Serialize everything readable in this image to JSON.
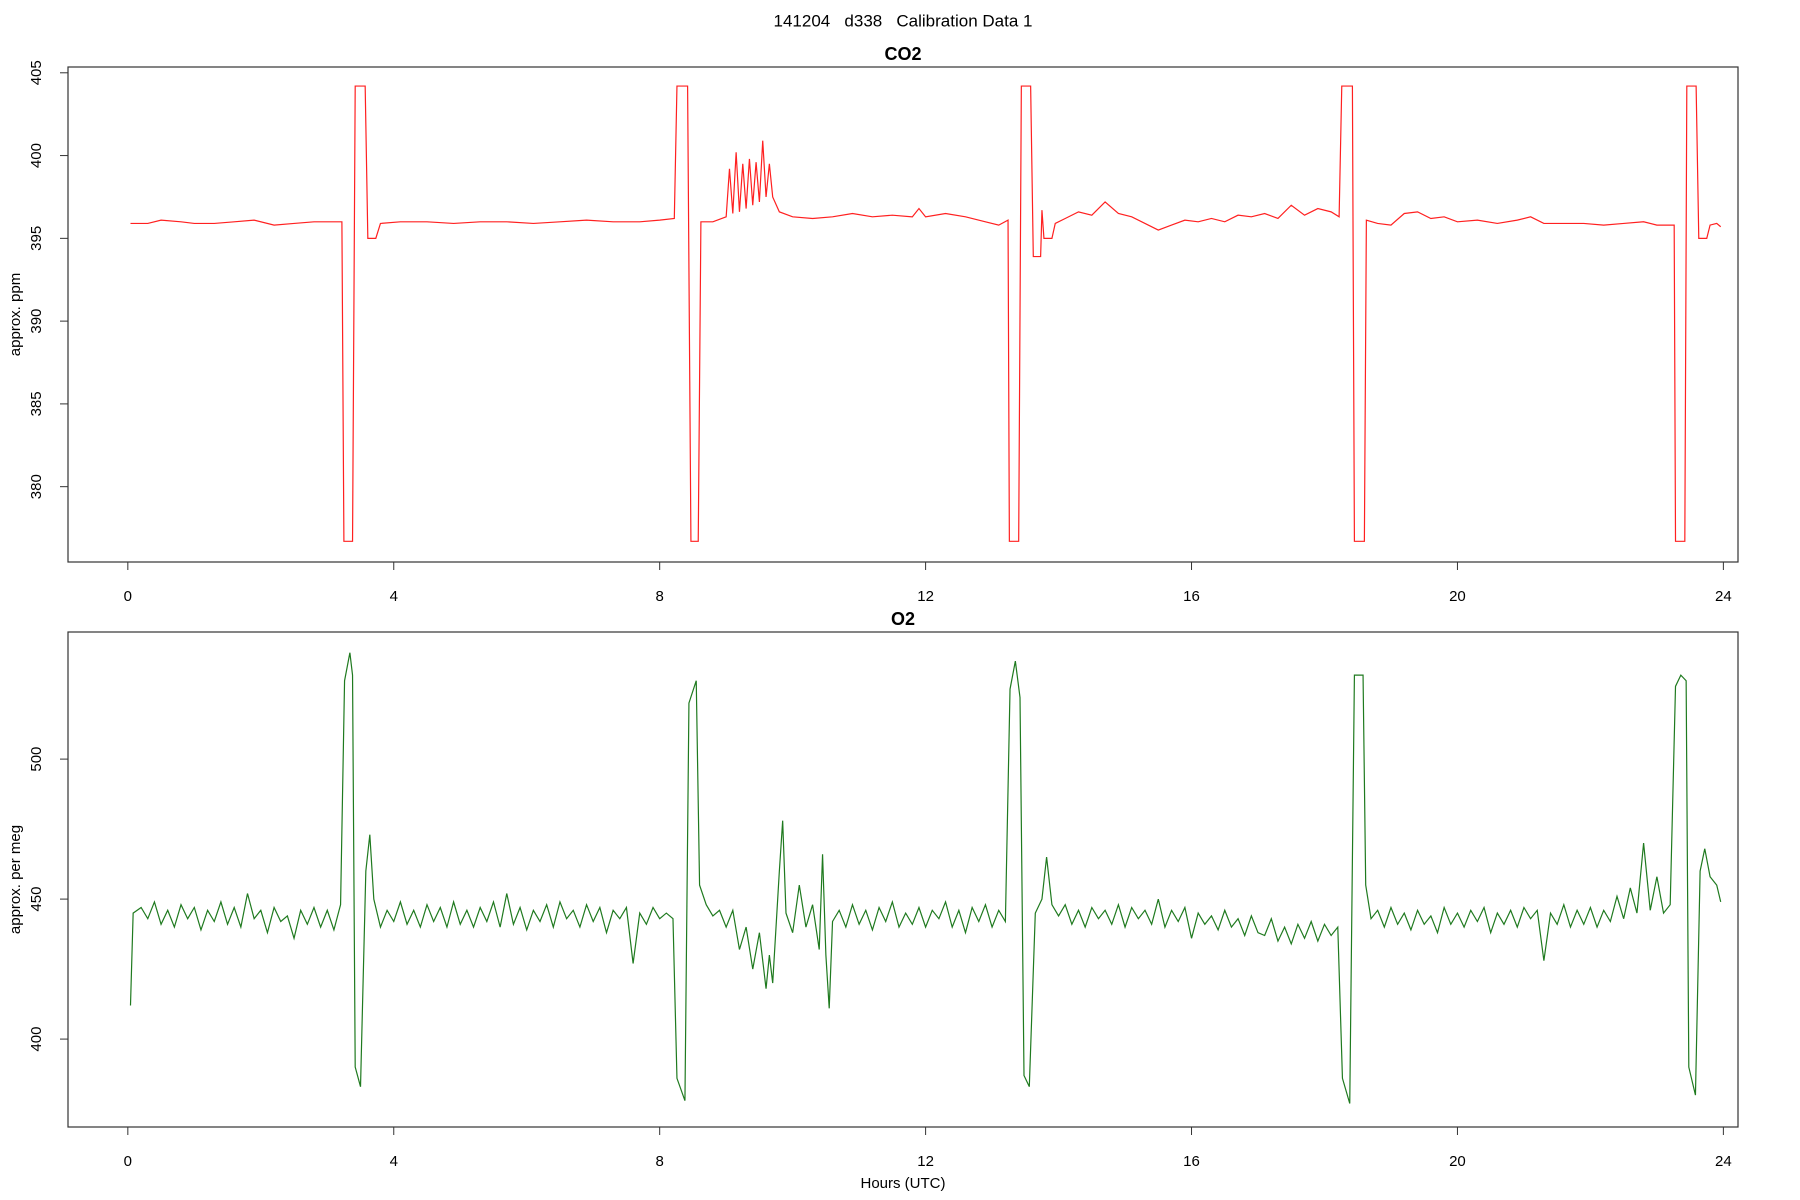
{
  "title": "141204   d338   Calibration Data 1",
  "chart_data": [
    {
      "type": "line",
      "title": "CO2",
      "ylabel": "approx. ppm",
      "xlim": [
        -0.9,
        24.22
      ],
      "xticks": [
        0,
        4,
        8,
        12,
        16,
        20,
        24
      ],
      "ylim": [
        375.45,
        405.35
      ],
      "yticks": [
        380,
        385,
        390,
        395,
        400,
        405
      ],
      "x": [
        0.04,
        0.3,
        0.5,
        0.8,
        1.0,
        1.3,
        1.6,
        1.9,
        2.2,
        2.5,
        2.8,
        3.0,
        3.22,
        3.25,
        3.38,
        3.42,
        3.57,
        3.61,
        3.73,
        3.8,
        4.1,
        4.5,
        4.9,
        5.3,
        5.7,
        6.1,
        6.5,
        6.9,
        7.3,
        7.7,
        8.0,
        8.22,
        8.26,
        8.42,
        8.47,
        8.58,
        8.62,
        8.8,
        9.0,
        9.05,
        9.1,
        9.15,
        9.2,
        9.25,
        9.3,
        9.35,
        9.4,
        9.45,
        9.5,
        9.55,
        9.6,
        9.65,
        9.7,
        9.8,
        10.0,
        10.3,
        10.6,
        10.9,
        11.2,
        11.5,
        11.8,
        11.9,
        12.0,
        12.3,
        12.6,
        12.9,
        13.1,
        13.24,
        13.26,
        13.4,
        13.44,
        13.58,
        13.62,
        13.73,
        13.75,
        13.78,
        13.9,
        13.95,
        14.1,
        14.3,
        14.5,
        14.7,
        14.9,
        15.1,
        15.3,
        15.5,
        15.7,
        15.9,
        16.1,
        16.3,
        16.5,
        16.7,
        16.9,
        17.1,
        17.3,
        17.5,
        17.7,
        17.9,
        18.1,
        18.22,
        18.26,
        18.42,
        18.45,
        18.6,
        18.63,
        18.8,
        19.0,
        19.2,
        19.4,
        19.6,
        19.8,
        20.0,
        20.3,
        20.6,
        20.9,
        21.1,
        21.3,
        21.6,
        21.9,
        22.2,
        22.5,
        22.8,
        23.0,
        23.26,
        23.28,
        23.42,
        23.45,
        23.59,
        23.63,
        23.75,
        23.8,
        23.9,
        23.96
      ],
      "series": [
        {
          "color": "#ff2020",
          "values": [
            395.9,
            395.9,
            396.1,
            396.0,
            395.9,
            395.9,
            396.0,
            396.1,
            395.8,
            395.9,
            396.0,
            396.0,
            396.0,
            376.7,
            376.7,
            404.2,
            404.2,
            395.0,
            395.0,
            395.9,
            396.0,
            396.0,
            395.9,
            396.0,
            396.0,
            395.9,
            396.0,
            396.1,
            396.0,
            396.0,
            396.1,
            396.2,
            404.2,
            404.2,
            376.7,
            376.7,
            396.0,
            396.0,
            396.3,
            399.2,
            396.5,
            400.2,
            396.6,
            399.5,
            396.8,
            399.8,
            397.0,
            399.6,
            397.2,
            400.9,
            397.5,
            399.5,
            397.5,
            396.6,
            396.3,
            396.2,
            396.3,
            396.5,
            396.3,
            396.4,
            396.3,
            396.8,
            396.3,
            396.5,
            396.3,
            396.0,
            395.8,
            396.1,
            376.7,
            376.7,
            404.2,
            404.2,
            393.9,
            393.9,
            396.7,
            395.0,
            395.0,
            395.9,
            396.2,
            396.6,
            396.4,
            397.2,
            396.5,
            396.3,
            395.9,
            395.5,
            395.8,
            396.1,
            396.0,
            396.2,
            396.0,
            396.4,
            396.3,
            396.5,
            396.2,
            397.0,
            396.4,
            396.8,
            396.6,
            396.3,
            404.2,
            404.2,
            376.7,
            376.7,
            396.1,
            395.9,
            395.8,
            396.5,
            396.6,
            396.2,
            396.3,
            396.0,
            396.1,
            395.9,
            396.1,
            396.3,
            395.9,
            395.9,
            395.9,
            395.8,
            395.9,
            396.0,
            395.8,
            395.8,
            376.7,
            376.7,
            404.2,
            404.2,
            395.0,
            395.0,
            395.8,
            395.9,
            395.7
          ]
        }
      ]
    },
    {
      "type": "line",
      "title": "O2",
      "ylabel": "approx. per meg",
      "xlabel": "Hours (UTC)",
      "xlim": [
        -0.9,
        24.22
      ],
      "xticks": [
        0,
        4,
        8,
        12,
        16,
        20,
        24
      ],
      "ylim": [
        368.6,
        545.4
      ],
      "yticks": [
        400,
        450,
        500
      ],
      "x": [
        0.04,
        0.08,
        0.2,
        0.3,
        0.4,
        0.5,
        0.6,
        0.7,
        0.8,
        0.9,
        1.0,
        1.1,
        1.2,
        1.3,
        1.4,
        1.5,
        1.6,
        1.7,
        1.8,
        1.9,
        2.0,
        2.1,
        2.2,
        2.3,
        2.4,
        2.5,
        2.6,
        2.7,
        2.8,
        2.9,
        3.0,
        3.1,
        3.2,
        3.26,
        3.34,
        3.38,
        3.42,
        3.5,
        3.58,
        3.64,
        3.7,
        3.8,
        3.9,
        4.0,
        4.1,
        4.2,
        4.3,
        4.4,
        4.5,
        4.6,
        4.7,
        4.8,
        4.9,
        5.0,
        5.1,
        5.2,
        5.3,
        5.4,
        5.5,
        5.6,
        5.7,
        5.8,
        5.9,
        6.0,
        6.1,
        6.2,
        6.3,
        6.4,
        6.5,
        6.6,
        6.7,
        6.8,
        6.9,
        7.0,
        7.1,
        7.2,
        7.3,
        7.4,
        7.5,
        7.6,
        7.7,
        7.8,
        7.9,
        8.0,
        8.1,
        8.2,
        8.26,
        8.38,
        8.44,
        8.55,
        8.6,
        8.7,
        8.8,
        8.9,
        9.0,
        9.1,
        9.2,
        9.3,
        9.4,
        9.5,
        9.6,
        9.65,
        9.7,
        9.8,
        9.85,
        9.9,
        10.0,
        10.1,
        10.2,
        10.3,
        10.4,
        10.45,
        10.5,
        10.55,
        10.6,
        10.7,
        10.8,
        10.9,
        11.0,
        11.1,
        11.2,
        11.3,
        11.4,
        11.5,
        11.6,
        11.7,
        11.8,
        11.9,
        12.0,
        12.1,
        12.2,
        12.3,
        12.4,
        12.5,
        12.6,
        12.7,
        12.8,
        12.9,
        13.0,
        13.1,
        13.2,
        13.27,
        13.35,
        13.42,
        13.48,
        13.56,
        13.65,
        13.75,
        13.82,
        13.9,
        14.0,
        14.1,
        14.2,
        14.3,
        14.4,
        14.5,
        14.6,
        14.7,
        14.8,
        14.9,
        15.0,
        15.1,
        15.2,
        15.3,
        15.4,
        15.5,
        15.6,
        15.7,
        15.8,
        15.9,
        16.0,
        16.1,
        16.2,
        16.3,
        16.4,
        16.5,
        16.6,
        16.7,
        16.8,
        16.9,
        17.0,
        17.1,
        17.2,
        17.3,
        17.4,
        17.5,
        17.6,
        17.7,
        17.8,
        17.9,
        18.0,
        18.1,
        18.2,
        18.27,
        18.38,
        18.45,
        18.58,
        18.62,
        18.7,
        18.8,
        18.9,
        19.0,
        19.1,
        19.2,
        19.3,
        19.4,
        19.5,
        19.6,
        19.7,
        19.8,
        19.9,
        20.0,
        20.1,
        20.2,
        20.3,
        20.4,
        20.5,
        20.6,
        20.7,
        20.8,
        20.9,
        21.0,
        21.1,
        21.2,
        21.3,
        21.4,
        21.5,
        21.6,
        21.7,
        21.8,
        21.9,
        22.0,
        22.1,
        22.2,
        22.3,
        22.4,
        22.5,
        22.6,
        22.7,
        22.8,
        22.9,
        23.0,
        23.1,
        23.2,
        23.28,
        23.36,
        23.44,
        23.48,
        23.58,
        23.65,
        23.72,
        23.8,
        23.9,
        23.96
      ],
      "series": [
        {
          "color": "#1f7a1f",
          "values": [
            412,
            445,
            447,
            443,
            449,
            441,
            446,
            440,
            448,
            443,
            447,
            439,
            446,
            442,
            449,
            441,
            447,
            440,
            452,
            443,
            446,
            438,
            447,
            442,
            444,
            436,
            446,
            441,
            447,
            440,
            446,
            439,
            448,
            528,
            538,
            530,
            390,
            383,
            460,
            473,
            450,
            440,
            446,
            442,
            449,
            441,
            446,
            440,
            448,
            442,
            447,
            440,
            449,
            441,
            446,
            440,
            447,
            442,
            449,
            440,
            452,
            441,
            447,
            439,
            446,
            442,
            448,
            440,
            449,
            443,
            446,
            440,
            448,
            442,
            447,
            438,
            446,
            443,
            447,
            427,
            445,
            441,
            447,
            443,
            445,
            443,
            386,
            378,
            520,
            528,
            455,
            448,
            444,
            446,
            440,
            446,
            432,
            440,
            425,
            438,
            418,
            430,
            420,
            460,
            478,
            445,
            438,
            455,
            440,
            448,
            432,
            466,
            430,
            411,
            442,
            446,
            440,
            448,
            441,
            446,
            439,
            447,
            442,
            449,
            440,
            445,
            441,
            447,
            440,
            446,
            443,
            449,
            440,
            446,
            438,
            447,
            442,
            448,
            440,
            446,
            442,
            525,
            535,
            522,
            387,
            383,
            445,
            450,
            465,
            448,
            444,
            448,
            441,
            446,
            440,
            447,
            443,
            446,
            441,
            448,
            440,
            447,
            443,
            446,
            441,
            450,
            440,
            446,
            442,
            447,
            436,
            445,
            441,
            444,
            439,
            446,
            440,
            443,
            437,
            444,
            438,
            437,
            443,
            435,
            440,
            434,
            441,
            436,
            442,
            435,
            441,
            437,
            440,
            386,
            377,
            530,
            530,
            455,
            443,
            446,
            440,
            447,
            441,
            445,
            439,
            446,
            441,
            444,
            438,
            447,
            441,
            445,
            440,
            446,
            442,
            447,
            438,
            445,
            441,
            446,
            440,
            447,
            443,
            446,
            428,
            445,
            441,
            448,
            440,
            446,
            441,
            447,
            440,
            446,
            442,
            451,
            443,
            454,
            445,
            470,
            446,
            458,
            445,
            448,
            526,
            530,
            528,
            390,
            380,
            460,
            468,
            458,
            455,
            449
          ]
        }
      ]
    }
  ]
}
